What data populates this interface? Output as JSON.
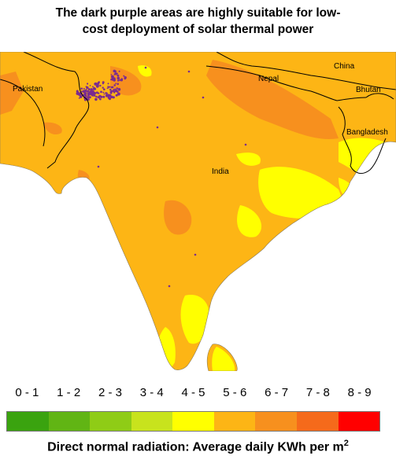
{
  "title": {
    "line1": "The dark purple areas are highly suitable for low-",
    "line2": "cost deployment of solar thermal power"
  },
  "map": {
    "labels": {
      "pakistan": "Pakistan",
      "nepal": "Nepal",
      "china": "China",
      "bhutan": "Bhutan",
      "bangladesh": "Bangladesh",
      "india": "India"
    },
    "colors": {
      "base": "#fdb515",
      "high": "#f7901e",
      "low": "#ffff00",
      "suitable": "#7b2b8f",
      "border": "#000000"
    }
  },
  "legend": {
    "ranges": [
      "0 - 1",
      "1 - 2",
      "2 - 3",
      "3 - 4",
      "4 - 5",
      "5 - 6",
      "6 - 7",
      "7 - 8",
      "8 - 9"
    ],
    "colors": [
      "#3aa30f",
      "#61b514",
      "#8fcc16",
      "#c8e31d",
      "#ffff00",
      "#fdb515",
      "#f7901e",
      "#f56a1b",
      "#ff0000"
    ],
    "caption": "Direct normal radiation: Average daily KWh per m",
    "caption_sup": "2"
  }
}
